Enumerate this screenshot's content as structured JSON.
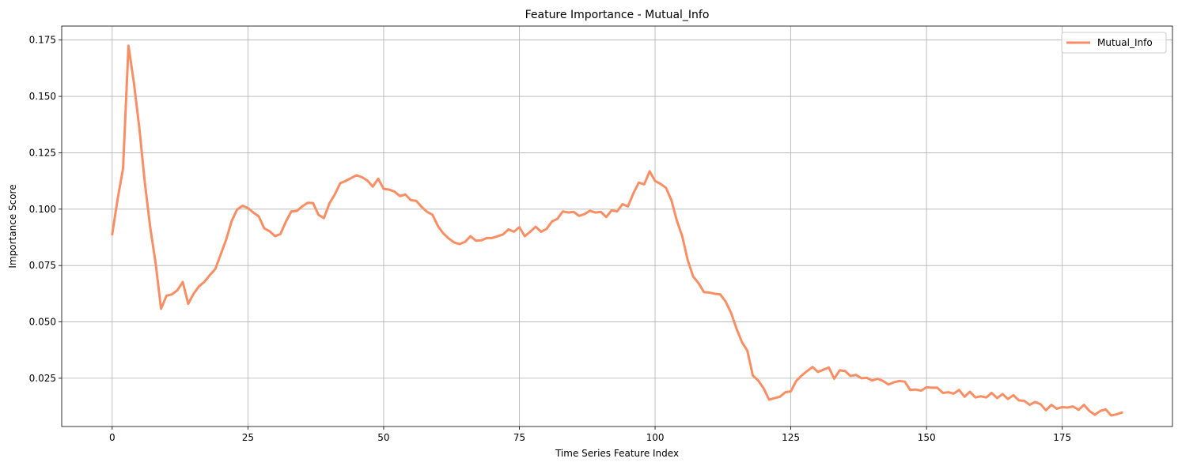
{
  "chart_data": {
    "type": "line",
    "title": "Feature Importance - Mutual_Info",
    "xlabel": "Time Series Feature Index",
    "ylabel": "Importance Score",
    "xlim": [
      -9.3,
      195.3
    ],
    "ylim": [
      0.0036,
      0.1812
    ],
    "xticks": [
      0,
      25,
      50,
      75,
      100,
      125,
      150,
      175
    ],
    "yticks": [
      0.025,
      0.05,
      0.075,
      0.1,
      0.125,
      0.15,
      0.175
    ],
    "xtick_labels": [
      "0",
      "25",
      "50",
      "75",
      "100",
      "125",
      "150",
      "175"
    ],
    "ytick_labels": [
      "0.025",
      "0.050",
      "0.075",
      "0.100",
      "0.125",
      "0.150",
      "0.175"
    ],
    "grid": true,
    "legend_position": "top-right",
    "series": [
      {
        "name": "Mutual_Info",
        "color": "#f98e64",
        "values": [
          0.0888,
          0.1045,
          0.118,
          0.1725,
          0.156,
          0.136,
          0.112,
          0.092,
          0.076,
          0.0558,
          0.0616,
          0.0622,
          0.064,
          0.0677,
          0.058,
          0.0625,
          0.0658,
          0.0678,
          0.0708,
          0.0735,
          0.08,
          0.0865,
          0.0947,
          0.0998,
          0.1015,
          0.1005,
          0.0985,
          0.0968,
          0.0915,
          0.0902,
          0.088,
          0.089,
          0.0945,
          0.099,
          0.0992,
          0.1012,
          0.1028,
          0.1027,
          0.0975,
          0.096,
          0.1025,
          0.1065,
          0.1115,
          0.1125,
          0.1138,
          0.115,
          0.1142,
          0.1127,
          0.11,
          0.1135,
          0.109,
          0.1087,
          0.1078,
          0.1058,
          0.1065,
          0.104,
          0.1037,
          0.101,
          0.0988,
          0.0975,
          0.0925,
          0.0892,
          0.087,
          0.0852,
          0.0845,
          0.0855,
          0.088,
          0.086,
          0.0862,
          0.0872,
          0.0872,
          0.088,
          0.0888,
          0.091,
          0.09,
          0.092,
          0.088,
          0.09,
          0.0922,
          0.09,
          0.0912,
          0.0945,
          0.0957,
          0.099,
          0.0985,
          0.0988,
          0.097,
          0.0978,
          0.0993,
          0.0985,
          0.0988,
          0.0965,
          0.0995,
          0.099,
          0.1022,
          0.1012,
          0.107,
          0.1118,
          0.111,
          0.1168,
          0.1125,
          0.1112,
          0.1095,
          0.104,
          0.095,
          0.088,
          0.0775,
          0.0702,
          0.0672,
          0.0632,
          0.063,
          0.0625,
          0.0622,
          0.059,
          0.054,
          0.047,
          0.041,
          0.0372,
          0.0262,
          0.024,
          0.0205,
          0.0155,
          0.0162,
          0.0168,
          0.0188,
          0.0192,
          0.0238,
          0.0262,
          0.0282,
          0.03,
          0.0278,
          0.0288,
          0.0298,
          0.0248,
          0.0285,
          0.0282,
          0.026,
          0.0265,
          0.025,
          0.0252,
          0.024,
          0.0248,
          0.0238,
          0.0222,
          0.0232,
          0.0238,
          0.0235,
          0.0198,
          0.02,
          0.0195,
          0.021,
          0.0208,
          0.0208,
          0.0185,
          0.0188,
          0.0182,
          0.0198,
          0.0168,
          0.019,
          0.0165,
          0.017,
          0.0165,
          0.0185,
          0.0162,
          0.018,
          0.0158,
          0.0175,
          0.0152,
          0.015,
          0.0132,
          0.0145,
          0.0135,
          0.0108,
          0.0132,
          0.0115,
          0.0122,
          0.012,
          0.0125,
          0.011,
          0.0132,
          0.0105,
          0.0088,
          0.0105,
          0.0112,
          0.0085,
          0.009,
          0.0098
        ]
      }
    ]
  }
}
